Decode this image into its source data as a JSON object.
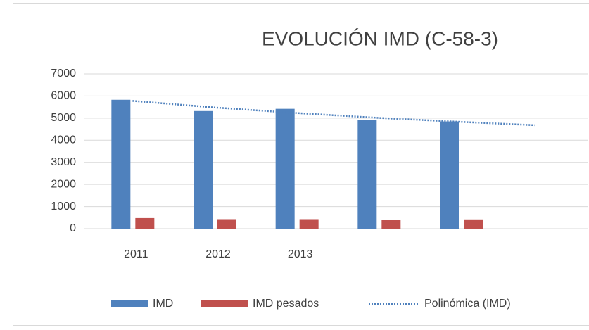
{
  "chart_data": {
    "type": "bar",
    "title": "EVOLUCIÓN IMD (C-58-3)",
    "categories": [
      "2011",
      "2012",
      "2013",
      null,
      null,
      null
    ],
    "series": [
      {
        "name": "IMD",
        "color": "#4f81bd",
        "values": [
          5830,
          5320,
          5420,
          4900,
          4850,
          null
        ]
      },
      {
        "name": "IMD pesados",
        "color": "#c0504d",
        "values": [
          480,
          430,
          430,
          390,
          420,
          null
        ]
      },
      {
        "name": "Polinómica (IMD)",
        "color": "#4f81bd",
        "type": "trendline",
        "values": [
          5780,
          5480,
          5230,
          5010,
          4830,
          4680
        ]
      }
    ],
    "ylim": [
      0,
      7000
    ],
    "yticks": [
      0,
      1000,
      2000,
      3000,
      4000,
      5000,
      6000,
      7000
    ],
    "grid": true,
    "legend": "bottom"
  }
}
